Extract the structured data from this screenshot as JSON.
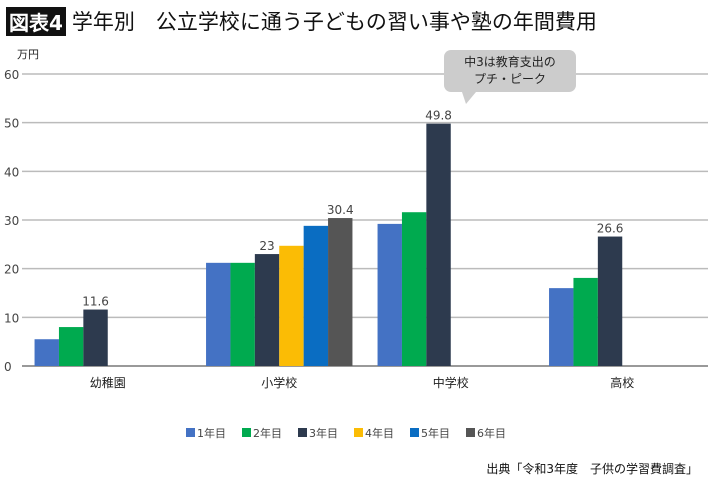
{
  "title": {
    "badge": "図表4",
    "text": "学年別　公立学校に通う子どもの習い事や塾の年間費用"
  },
  "callout": {
    "line1": "中3は教育支出の",
    "line2": "プチ・ピーク"
  },
  "source": "出典「令和3年度　子供の学習費調査」",
  "chart_data": {
    "type": "bar",
    "ylabel": "万円",
    "ylim": [
      0,
      60
    ],
    "yticks": [
      0,
      10,
      20,
      30,
      40,
      50,
      60
    ],
    "grid": true,
    "legend_position": "bottom",
    "categories": [
      "幼稚園",
      "小学校",
      "中学校",
      "高校"
    ],
    "series": [
      {
        "name": "1年目",
        "color": "#4472c4",
        "values": [
          5.5,
          21.2,
          29.2,
          16.0
        ]
      },
      {
        "name": "2年目",
        "color": "#00aa4f",
        "values": [
          8.0,
          21.2,
          31.6,
          18.1
        ]
      },
      {
        "name": "3年目",
        "color": "#2d3a4e",
        "values": [
          11.6,
          23,
          49.8,
          26.6
        ],
        "labels": [
          "11.6",
          "23",
          "49.8",
          "26.6"
        ]
      },
      {
        "name": "4年目",
        "color": "#fbbc05",
        "values": [
          null,
          24.7,
          null,
          null
        ]
      },
      {
        "name": "5年目",
        "color": "#0a6dc2",
        "values": [
          null,
          28.8,
          null,
          null
        ]
      },
      {
        "name": "6年目",
        "color": "#555555",
        "values": [
          null,
          30.4,
          null,
          null
        ],
        "labels": [
          null,
          "30.4",
          null,
          null
        ]
      }
    ]
  }
}
